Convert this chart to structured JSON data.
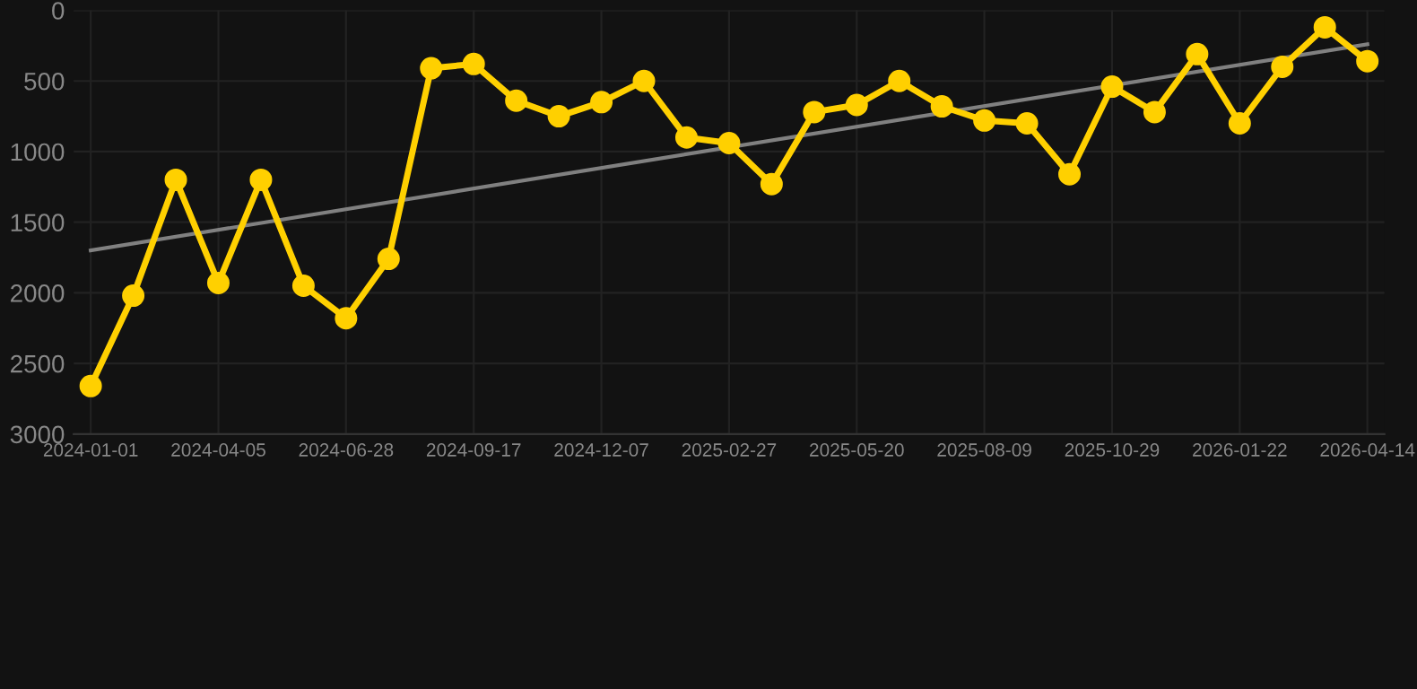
{
  "chart_data": {
    "type": "line",
    "categories": [
      "2024-01-01",
      null,
      null,
      "2024-04-05",
      null,
      null,
      "2024-06-28",
      null,
      null,
      "2024-09-17",
      null,
      null,
      "2024-12-07",
      null,
      null,
      "2025-02-27",
      null,
      null,
      "2025-05-20",
      null,
      null,
      "2025-08-09",
      null,
      null,
      "2025-10-29",
      null,
      null,
      "2026-01-22",
      null,
      null,
      "2026-04-14"
    ],
    "series": [
      {
        "color": "#ffd000",
        "marker": "circle",
        "values": [
          2660,
          2020,
          1200,
          1930,
          1200,
          1950,
          2180,
          1760,
          410,
          380,
          640,
          750,
          650,
          500,
          900,
          940,
          1230,
          720,
          670,
          500,
          680,
          780,
          800,
          1160,
          540,
          720,
          310,
          800,
          400,
          120,
          360
        ]
      },
      {
        "color": "#808080",
        "marker": "none",
        "values": [
          1700,
          null,
          null,
          null,
          null,
          null,
          null,
          null,
          null,
          null,
          null,
          null,
          null,
          null,
          null,
          null,
          null,
          null,
          null,
          null,
          null,
          null,
          null,
          null,
          null,
          null,
          null,
          null,
          null,
          null,
          240
        ]
      }
    ],
    "ylim": [
      3000,
      0
    ],
    "yticks": [
      0,
      500,
      1000,
      1500,
      2000,
      2500,
      3000
    ],
    "grid": true
  }
}
